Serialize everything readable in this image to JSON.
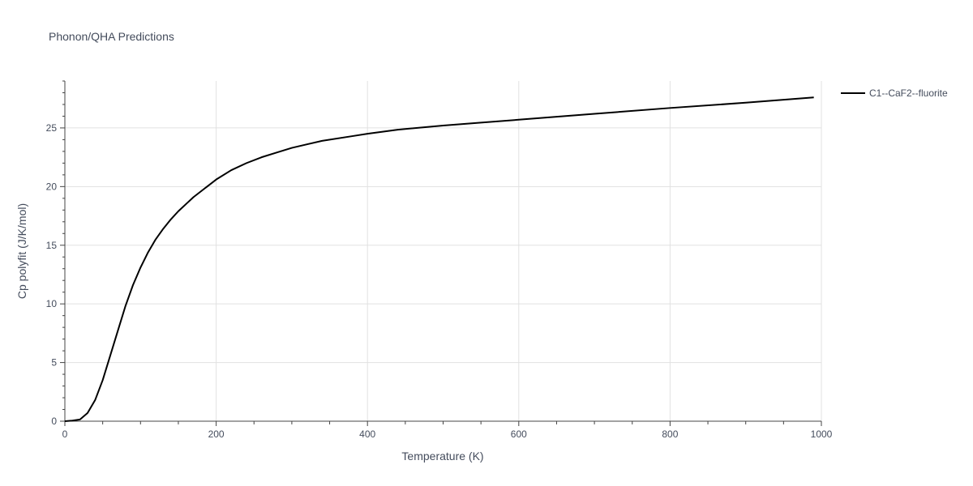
{
  "chart_data": {
    "type": "line",
    "title": "Phonon/QHA Predictions",
    "xlabel": "Temperature (K)",
    "ylabel": "Cp polyfit (J/K/mol)",
    "xlim": [
      0,
      1000
    ],
    "ylim": [
      0,
      29
    ],
    "x_ticks": [
      0,
      200,
      400,
      600,
      800,
      1000
    ],
    "y_ticks": [
      0,
      5,
      10,
      15,
      20,
      25
    ],
    "grid": true,
    "legend_position": "top-right",
    "series": [
      {
        "name": "C1--CaF2--fluorite",
        "color": "#000000",
        "x": [
          0,
          10,
          20,
          30,
          40,
          50,
          60,
          70,
          80,
          90,
          100,
          110,
          120,
          130,
          140,
          150,
          160,
          170,
          180,
          190,
          200,
          220,
          240,
          260,
          280,
          300,
          340,
          380,
          400,
          440,
          500,
          550,
          600,
          700,
          800,
          900,
          990
        ],
        "y": [
          0.0,
          0.05,
          0.15,
          0.7,
          1.8,
          3.5,
          5.6,
          7.7,
          9.8,
          11.6,
          13.1,
          14.4,
          15.5,
          16.4,
          17.2,
          17.9,
          18.5,
          19.1,
          19.6,
          20.1,
          20.6,
          21.4,
          22.0,
          22.5,
          22.9,
          23.3,
          23.9,
          24.3,
          24.5,
          24.85,
          25.2,
          25.45,
          25.7,
          26.2,
          26.7,
          27.15,
          27.6
        ]
      }
    ]
  }
}
